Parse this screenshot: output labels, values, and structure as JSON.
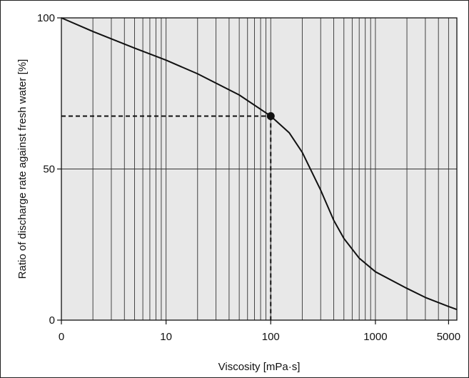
{
  "chart_data": {
    "type": "line",
    "title": "",
    "xlabel": "Viscosity [mPa·s]",
    "ylabel": "Ratio of discharge rate against fresh water [%]",
    "xscale": "log",
    "xlim": [
      1,
      6000
    ],
    "ylim": [
      0,
      100
    ],
    "x_tick_labels": [
      "0",
      "10",
      "100",
      "1000",
      "5000"
    ],
    "y_tick_labels": [
      "100",
      "50",
      "0"
    ],
    "grid": "vertical log grid lines, horizontal line at 50",
    "background_color": "#e8e8e8",
    "line_color": "#111111",
    "series": [
      {
        "x": [
          1,
          2,
          5,
          10,
          20,
          50,
          100,
          150,
          200,
          300,
          400,
          500,
          700,
          1000,
          2000,
          3000,
          5000,
          6000
        ],
        "y": [
          100,
          95.5,
          90,
          86,
          81.5,
          74.5,
          67.5,
          62,
          55.5,
          43,
          33,
          27,
          20.5,
          16,
          10.5,
          7.5,
          4.5,
          3.5
        ]
      }
    ],
    "highlight_point": {
      "x": 100,
      "y": 67.5
    }
  }
}
